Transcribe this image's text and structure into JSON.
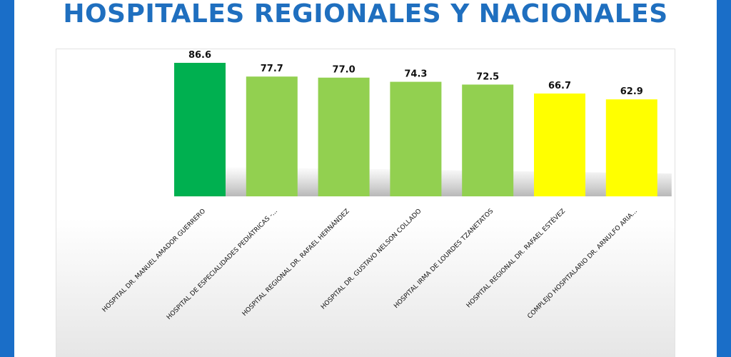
{
  "title": "HOSPITALES REGIONALES Y NACIONALES",
  "colors": {
    "frame": "#1a6ec8",
    "title": "#1f6fbf"
  },
  "chart_data": {
    "type": "bar",
    "title": "HOSPITALES REGIONALES Y NACIONALES",
    "xlabel": "",
    "ylabel": "",
    "ylim": [
      0,
      100
    ],
    "grid": false,
    "legend": "none",
    "categories": [
      "HOSPITAL DR. MANUEL AMADOR GUERRERO",
      "HOSPITAL DE ESPECIALIDADES PEDIÁTRICAS -...",
      "HOSPITAL REGIONAL DR. RAFAEL HERNÁNDEZ",
      "HOSPITAL DR. GUSTAVO NELSON COLLADO",
      "HOSPITAL IRMA DE LOURDES TZANETATOS",
      "HOSPITAL REGIONAL DR. RAFAEL ESTÉVEZ",
      "COMPLEJO HOSPITALARIO DR. ARNULFO ARIA..."
    ],
    "values": [
      86.6,
      77.7,
      77.0,
      74.3,
      72.5,
      66.7,
      62.9
    ],
    "data_labels": [
      "86.6",
      "77.7",
      "77.0",
      "74.3",
      "72.5",
      "66.7",
      "62.9"
    ],
    "bar_colors": [
      "#00b050",
      "#92d050",
      "#92d050",
      "#92d050",
      "#92d050",
      "#ffff00",
      "#ffff00"
    ]
  }
}
